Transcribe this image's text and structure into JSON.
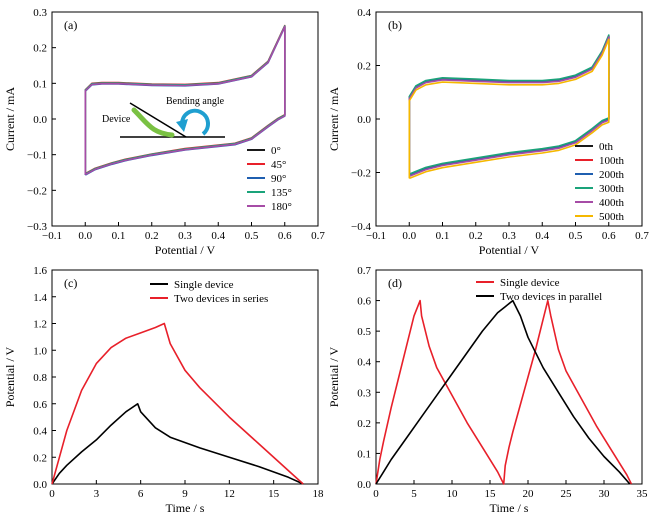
{
  "chart_data": [
    {
      "panel": "(a)",
      "type": "line",
      "xlabel": "Potential / V",
      "ylabel": "Current / mA",
      "xlim": [
        -0.1,
        0.7
      ],
      "ylim": [
        -0.3,
        0.3
      ],
      "xticks": [
        -0.1,
        0.0,
        0.1,
        0.2,
        0.3,
        0.4,
        0.5,
        0.6,
        0.7
      ],
      "yticks": [
        -0.3,
        -0.2,
        -0.1,
        0.0,
        0.1,
        0.2,
        0.3
      ],
      "legend_position": "bottom-right",
      "series": [
        {
          "name": "0°",
          "color": "#1a1a1a",
          "dy": 0.0,
          "x": [
            0.0,
            0.03,
            0.08,
            0.12,
            0.2,
            0.3,
            0.4,
            0.45,
            0.5,
            0.55,
            0.58,
            0.6,
            0.6,
            0.58,
            0.55,
            0.5,
            0.4,
            0.3,
            0.2,
            0.1,
            0.05,
            0.02,
            0.0,
            0.0
          ],
          "y": [
            -0.155,
            -0.14,
            -0.125,
            -0.115,
            -0.1,
            -0.085,
            -0.075,
            -0.07,
            -0.055,
            -0.02,
            0.0,
            0.01,
            0.26,
            0.22,
            0.16,
            0.12,
            0.1,
            0.095,
            0.096,
            0.1,
            0.1,
            0.098,
            0.08,
            -0.155
          ]
        },
        {
          "name": "45°",
          "color": "#e8202a",
          "dy": 0.002,
          "x": [
            0.0,
            0.03,
            0.08,
            0.12,
            0.2,
            0.3,
            0.4,
            0.45,
            0.5,
            0.55,
            0.58,
            0.6,
            0.6,
            0.58,
            0.55,
            0.5,
            0.4,
            0.3,
            0.2,
            0.1,
            0.05,
            0.02,
            0.0,
            0.0
          ],
          "y": [
            -0.155,
            -0.14,
            -0.125,
            -0.115,
            -0.1,
            -0.085,
            -0.075,
            -0.07,
            -0.055,
            -0.02,
            0.0,
            0.01,
            0.26,
            0.22,
            0.16,
            0.12,
            0.1,
            0.095,
            0.096,
            0.1,
            0.1,
            0.098,
            0.08,
            -0.155
          ]
        },
        {
          "name": "90°",
          "color": "#1f5fb0",
          "dy": -0.002,
          "x": [
            0.0,
            0.03,
            0.08,
            0.12,
            0.2,
            0.3,
            0.4,
            0.45,
            0.5,
            0.55,
            0.58,
            0.6,
            0.6,
            0.58,
            0.55,
            0.5,
            0.4,
            0.3,
            0.2,
            0.1,
            0.05,
            0.02,
            0.0,
            0.0
          ],
          "y": [
            -0.155,
            -0.14,
            -0.125,
            -0.115,
            -0.1,
            -0.085,
            -0.075,
            -0.07,
            -0.055,
            -0.02,
            0.0,
            0.01,
            0.26,
            0.22,
            0.16,
            0.12,
            0.1,
            0.095,
            0.096,
            0.1,
            0.1,
            0.098,
            0.08,
            -0.155
          ]
        },
        {
          "name": "135°",
          "color": "#1aa37a",
          "dy": 0.001,
          "x": [
            0.0,
            0.03,
            0.08,
            0.12,
            0.2,
            0.3,
            0.4,
            0.45,
            0.5,
            0.55,
            0.58,
            0.6,
            0.6,
            0.58,
            0.55,
            0.5,
            0.4,
            0.3,
            0.2,
            0.1,
            0.05,
            0.02,
            0.0,
            0.0
          ],
          "y": [
            -0.155,
            -0.14,
            -0.125,
            -0.115,
            -0.1,
            -0.085,
            -0.075,
            -0.07,
            -0.055,
            -0.02,
            0.0,
            0.01,
            0.26,
            0.22,
            0.16,
            0.12,
            0.1,
            0.095,
            0.096,
            0.1,
            0.1,
            0.098,
            0.08,
            -0.155
          ]
        },
        {
          "name": "180°",
          "color": "#a64ca6",
          "dy": -0.001,
          "x": [
            0.0,
            0.03,
            0.08,
            0.12,
            0.2,
            0.3,
            0.4,
            0.45,
            0.5,
            0.55,
            0.58,
            0.6,
            0.6,
            0.58,
            0.55,
            0.5,
            0.4,
            0.3,
            0.2,
            0.1,
            0.05,
            0.02,
            0.0,
            0.0
          ],
          "y": [
            -0.155,
            -0.14,
            -0.125,
            -0.115,
            -0.1,
            -0.085,
            -0.075,
            -0.07,
            -0.055,
            -0.02,
            0.0,
            0.01,
            0.26,
            0.22,
            0.16,
            0.12,
            0.1,
            0.095,
            0.096,
            0.1,
            0.1,
            0.098,
            0.08,
            -0.155
          ]
        }
      ],
      "inset": {
        "label_device": "Device",
        "label_angle": "Bending angle",
        "device_color": "#7ac143",
        "arrow_color": "#1f9fd0"
      }
    },
    {
      "panel": "(b)",
      "type": "line",
      "xlabel": "Potential / V",
      "ylabel": "Current / mA",
      "xlim": [
        -0.1,
        0.7
      ],
      "ylim": [
        -0.4,
        0.4
      ],
      "xticks": [
        -0.1,
        0.0,
        0.1,
        0.2,
        0.3,
        0.4,
        0.5,
        0.6,
        0.7
      ],
      "yticks": [
        -0.4,
        -0.2,
        0.0,
        0.2,
        0.4
      ],
      "legend_position": "bottom-right",
      "series": [
        {
          "name": "0th",
          "color": "#1a1a1a",
          "dy": 0.0,
          "x": [
            0.0,
            0.02,
            0.05,
            0.1,
            0.2,
            0.3,
            0.4,
            0.45,
            0.5,
            0.55,
            0.58,
            0.6,
            0.6,
            0.58,
            0.55,
            0.5,
            0.45,
            0.4,
            0.3,
            0.2,
            0.1,
            0.05,
            0.02,
            0.0,
            0.0
          ],
          "y": [
            -0.21,
            -0.2,
            -0.185,
            -0.17,
            -0.15,
            -0.13,
            -0.115,
            -0.105,
            -0.085,
            -0.04,
            -0.01,
            0.0,
            0.31,
            0.25,
            0.19,
            0.16,
            0.145,
            0.14,
            0.14,
            0.145,
            0.15,
            0.14,
            0.12,
            0.08,
            -0.21
          ]
        },
        {
          "name": "100th",
          "color": "#e8202a",
          "dy": 0.002,
          "x": [
            0.0,
            0.02,
            0.05,
            0.1,
            0.2,
            0.3,
            0.4,
            0.45,
            0.5,
            0.55,
            0.58,
            0.6,
            0.6,
            0.58,
            0.55,
            0.5,
            0.45,
            0.4,
            0.3,
            0.2,
            0.1,
            0.05,
            0.02,
            0.0,
            0.0
          ],
          "y": [
            -0.21,
            -0.2,
            -0.185,
            -0.17,
            -0.15,
            -0.13,
            -0.115,
            -0.105,
            -0.085,
            -0.04,
            -0.01,
            0.0,
            0.31,
            0.25,
            0.19,
            0.16,
            0.145,
            0.14,
            0.14,
            0.145,
            0.15,
            0.14,
            0.12,
            0.08,
            -0.21
          ]
        },
        {
          "name": "200th",
          "color": "#1f5fb0",
          "dy": -0.002,
          "x": [
            0.0,
            0.02,
            0.05,
            0.1,
            0.2,
            0.3,
            0.4,
            0.45,
            0.5,
            0.55,
            0.58,
            0.6,
            0.6,
            0.58,
            0.55,
            0.5,
            0.45,
            0.4,
            0.3,
            0.2,
            0.1,
            0.05,
            0.02,
            0.0,
            0.0
          ],
          "y": [
            -0.21,
            -0.2,
            -0.185,
            -0.17,
            -0.15,
            -0.13,
            -0.115,
            -0.105,
            -0.085,
            -0.04,
            -0.01,
            0.0,
            0.31,
            0.25,
            0.19,
            0.16,
            0.145,
            0.14,
            0.14,
            0.145,
            0.15,
            0.14,
            0.12,
            0.08,
            -0.21
          ]
        },
        {
          "name": "300th",
          "color": "#1aa37a",
          "dy": 0.004,
          "x": [
            0.0,
            0.02,
            0.05,
            0.1,
            0.2,
            0.3,
            0.4,
            0.45,
            0.5,
            0.55,
            0.58,
            0.6,
            0.6,
            0.58,
            0.55,
            0.5,
            0.45,
            0.4,
            0.3,
            0.2,
            0.1,
            0.05,
            0.02,
            0.0,
            0.0
          ],
          "y": [
            -0.21,
            -0.2,
            -0.185,
            -0.17,
            -0.15,
            -0.13,
            -0.115,
            -0.105,
            -0.085,
            -0.04,
            -0.01,
            0.0,
            0.31,
            0.25,
            0.19,
            0.16,
            0.145,
            0.14,
            0.14,
            0.145,
            0.15,
            0.14,
            0.12,
            0.08,
            -0.21
          ]
        },
        {
          "name": "400th",
          "color": "#a64ca6",
          "dy": -0.004,
          "x": [
            0.0,
            0.02,
            0.05,
            0.1,
            0.2,
            0.3,
            0.4,
            0.45,
            0.5,
            0.55,
            0.58,
            0.6,
            0.6,
            0.58,
            0.55,
            0.5,
            0.45,
            0.4,
            0.3,
            0.2,
            0.1,
            0.05,
            0.02,
            0.0,
            0.0
          ],
          "y": [
            -0.21,
            -0.2,
            -0.185,
            -0.17,
            -0.15,
            -0.13,
            -0.115,
            -0.105,
            -0.085,
            -0.04,
            -0.01,
            0.0,
            0.31,
            0.25,
            0.19,
            0.16,
            0.145,
            0.14,
            0.14,
            0.145,
            0.15,
            0.14,
            0.12,
            0.08,
            -0.21
          ]
        },
        {
          "name": "500th",
          "color": "#f5b800",
          "dy": -0.012,
          "x": [
            0.0,
            0.02,
            0.05,
            0.1,
            0.2,
            0.3,
            0.4,
            0.45,
            0.5,
            0.55,
            0.58,
            0.6,
            0.6,
            0.58,
            0.55,
            0.5,
            0.45,
            0.4,
            0.3,
            0.2,
            0.1,
            0.05,
            0.02,
            0.0,
            0.0
          ],
          "y": [
            -0.21,
            -0.2,
            -0.185,
            -0.17,
            -0.15,
            -0.13,
            -0.115,
            -0.105,
            -0.085,
            -0.04,
            -0.01,
            0.0,
            0.31,
            0.25,
            0.19,
            0.16,
            0.145,
            0.14,
            0.14,
            0.145,
            0.15,
            0.14,
            0.12,
            0.08,
            -0.21
          ]
        }
      ]
    },
    {
      "panel": "(c)",
      "type": "line",
      "xlabel": "Time / s",
      "ylabel": "Potential / V",
      "xlim": [
        0,
        18
      ],
      "ylim": [
        0.0,
        1.6
      ],
      "xticks": [
        0,
        3,
        6,
        9,
        12,
        15,
        18
      ],
      "yticks": [
        0.0,
        0.2,
        0.4,
        0.6,
        0.8,
        1.0,
        1.2,
        1.4,
        1.6
      ],
      "legend_position": "top-center",
      "series": [
        {
          "name": "Single device",
          "color": "#000000",
          "dy": 0.0,
          "x": [
            0,
            0.5,
            1,
            2,
            3,
            4,
            5,
            5.8,
            6,
            7,
            8,
            10,
            12,
            14,
            16,
            17
          ],
          "y": [
            0.0,
            0.08,
            0.14,
            0.24,
            0.33,
            0.44,
            0.54,
            0.6,
            0.54,
            0.42,
            0.35,
            0.27,
            0.2,
            0.13,
            0.05,
            0.0
          ]
        },
        {
          "name": "Two devices in series",
          "color": "#e8202a",
          "dy": 0.0,
          "x": [
            0,
            0.5,
            1,
            2,
            3,
            4,
            5,
            6,
            7,
            7.6,
            8,
            9,
            10,
            12,
            14,
            16,
            17
          ],
          "y": [
            0.0,
            0.2,
            0.4,
            0.7,
            0.9,
            1.02,
            1.09,
            1.13,
            1.17,
            1.2,
            1.05,
            0.85,
            0.72,
            0.5,
            0.3,
            0.1,
            0.0
          ]
        }
      ]
    },
    {
      "panel": "(d)",
      "type": "line",
      "xlabel": "Time / s",
      "ylabel": "Potential / V",
      "xlim": [
        0,
        35
      ],
      "ylim": [
        0.0,
        0.7
      ],
      "xticks": [
        0,
        5,
        10,
        15,
        20,
        25,
        30,
        35
      ],
      "yticks": [
        0.0,
        0.1,
        0.2,
        0.3,
        0.4,
        0.5,
        0.6,
        0.7
      ],
      "legend_position": "top-center",
      "series": [
        {
          "name": "Single device",
          "color": "#e8202a",
          "dy": 0.0,
          "x": [
            0,
            0.5,
            1,
            2,
            3,
            4,
            5,
            5.8,
            6,
            7,
            8,
            10,
            12,
            14,
            16,
            16.8,
            17,
            17.5,
            18,
            19,
            20,
            21,
            22,
            22.6,
            23,
            24,
            25,
            27,
            29,
            31,
            33,
            33.6
          ],
          "y": [
            0.0,
            0.08,
            0.14,
            0.25,
            0.35,
            0.45,
            0.55,
            0.6,
            0.55,
            0.45,
            0.38,
            0.29,
            0.2,
            0.12,
            0.04,
            0.0,
            0.06,
            0.12,
            0.17,
            0.26,
            0.35,
            0.44,
            0.54,
            0.6,
            0.55,
            0.44,
            0.37,
            0.28,
            0.19,
            0.11,
            0.03,
            0.0
          ]
        },
        {
          "name": "Two devices in parallel",
          "color": "#000000",
          "dy": 0.0,
          "x": [
            0,
            1,
            2,
            4,
            6,
            8,
            10,
            12,
            14,
            16,
            17,
            18,
            19,
            20,
            22,
            24,
            26,
            28,
            30,
            32,
            33.4
          ],
          "y": [
            0.0,
            0.04,
            0.08,
            0.15,
            0.22,
            0.29,
            0.36,
            0.43,
            0.5,
            0.56,
            0.58,
            0.6,
            0.55,
            0.48,
            0.38,
            0.3,
            0.22,
            0.15,
            0.09,
            0.04,
            0.0
          ]
        }
      ]
    }
  ]
}
